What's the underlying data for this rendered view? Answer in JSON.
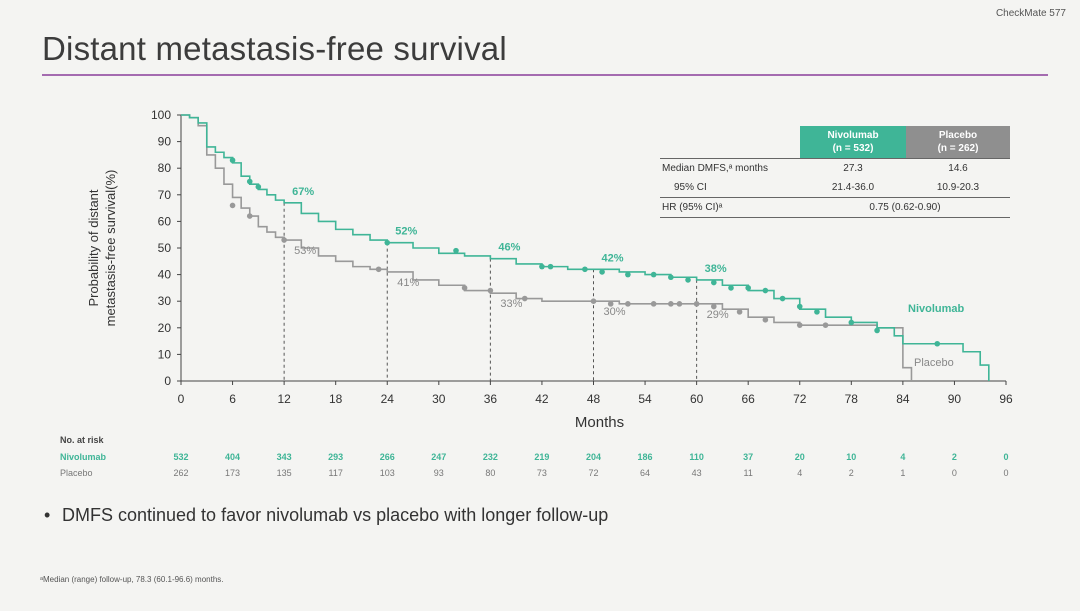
{
  "study_tag": "CheckMate 577",
  "title": "Distant metastasis-free survival",
  "bullet": "DMFS continued to favor nivolumab vs placebo with longer follow-up",
  "footnote": "ᵃMedian (range) follow-up, 78.3 (60.1-96.6) months.",
  "colors": {
    "nivolumab": "#3fb597",
    "placebo": "#999999",
    "accent": "#a46bb0"
  },
  "table": {
    "col_nivolumab": [
      "Nivolumab",
      "(n = 532)"
    ],
    "col_placebo": [
      "Placebo",
      "(n = 262)"
    ],
    "rows": [
      {
        "label": "Median DMFS,ᵃ months",
        "nivolumab": "27.3",
        "placebo": "14.6"
      },
      {
        "label": "95% CI",
        "nivolumab": "21.4-36.0",
        "placebo": "10.9-20.3"
      }
    ],
    "hr_label": "HR (95% CI)ᵃ",
    "hr_value": "0.75 (0.62-0.90)"
  },
  "chart_data": {
    "type": "line",
    "ylabel": [
      "Probability of distant",
      "metastasis-free survival(%)"
    ],
    "xlabel": "Months",
    "xlim": [
      0,
      96
    ],
    "ylim": [
      0,
      100
    ],
    "x_ticks": [
      0,
      6,
      12,
      18,
      24,
      30,
      36,
      42,
      48,
      54,
      60,
      66,
      72,
      78,
      84,
      90,
      96
    ],
    "y_ticks": [
      0,
      10,
      20,
      30,
      40,
      50,
      60,
      70,
      80,
      90,
      100
    ],
    "series": [
      {
        "name": "Nivolumab",
        "points": [
          [
            0,
            100
          ],
          [
            1,
            99
          ],
          [
            2,
            97
          ],
          [
            3,
            88
          ],
          [
            4,
            86
          ],
          [
            5,
            84
          ],
          [
            6,
            82
          ],
          [
            7,
            77
          ],
          [
            8,
            74
          ],
          [
            9,
            72
          ],
          [
            10,
            70
          ],
          [
            11,
            68
          ],
          [
            12,
            67
          ],
          [
            14,
            63
          ],
          [
            16,
            60
          ],
          [
            18,
            57
          ],
          [
            20,
            55
          ],
          [
            22,
            53
          ],
          [
            24,
            52
          ],
          [
            27,
            50
          ],
          [
            30,
            48
          ],
          [
            33,
            47
          ],
          [
            36,
            46
          ],
          [
            39,
            44
          ],
          [
            42,
            43
          ],
          [
            45,
            42
          ],
          [
            48,
            42
          ],
          [
            51,
            41
          ],
          [
            54,
            40
          ],
          [
            57,
            39
          ],
          [
            60,
            38
          ],
          [
            63,
            36
          ],
          [
            66,
            34
          ],
          [
            69,
            31
          ],
          [
            72,
            27
          ],
          [
            75,
            24
          ],
          [
            78,
            22
          ],
          [
            81,
            20
          ],
          [
            83,
            17
          ],
          [
            84,
            14
          ],
          [
            90,
            14
          ],
          [
            91,
            11
          ],
          [
            93,
            6
          ],
          [
            94,
            0
          ]
        ],
        "censors": [
          [
            6,
            83
          ],
          [
            8,
            75
          ],
          [
            9,
            73
          ],
          [
            24,
            52
          ],
          [
            32,
            49
          ],
          [
            42,
            43
          ],
          [
            43,
            43
          ],
          [
            47,
            42
          ],
          [
            49,
            41
          ],
          [
            52,
            40
          ],
          [
            55,
            40
          ],
          [
            57,
            39
          ],
          [
            59,
            38
          ],
          [
            62,
            37
          ],
          [
            64,
            35
          ],
          [
            66,
            35
          ],
          [
            68,
            34
          ],
          [
            70,
            31
          ],
          [
            72,
            28
          ],
          [
            74,
            26
          ],
          [
            78,
            22
          ],
          [
            81,
            19
          ],
          [
            88,
            14
          ]
        ],
        "milestones": [
          {
            "x": 12,
            "y": 67,
            "label": "67%"
          },
          {
            "x": 24,
            "y": 52,
            "label": "52%"
          },
          {
            "x": 36,
            "y": 46,
            "label": "46%"
          },
          {
            "x": 48,
            "y": 42,
            "label": "42%"
          },
          {
            "x": 60,
            "y": 38,
            "label": "38%"
          }
        ],
        "at_risk": [
          532,
          404,
          343,
          293,
          266,
          247,
          232,
          219,
          204,
          186,
          110,
          37,
          20,
          10,
          4,
          2,
          0
        ]
      },
      {
        "name": "Placebo",
        "points": [
          [
            0,
            100
          ],
          [
            1,
            99
          ],
          [
            2,
            96
          ],
          [
            3,
            85
          ],
          [
            4,
            80
          ],
          [
            5,
            74
          ],
          [
            6,
            69
          ],
          [
            7,
            65
          ],
          [
            8,
            62
          ],
          [
            9,
            58
          ],
          [
            10,
            56
          ],
          [
            11,
            54
          ],
          [
            12,
            53
          ],
          [
            14,
            50
          ],
          [
            16,
            47
          ],
          [
            18,
            45
          ],
          [
            20,
            43
          ],
          [
            22,
            42
          ],
          [
            24,
            41
          ],
          [
            27,
            38
          ],
          [
            30,
            36
          ],
          [
            33,
            34
          ],
          [
            36,
            33
          ],
          [
            39,
            31
          ],
          [
            42,
            30
          ],
          [
            45,
            30
          ],
          [
            48,
            30
          ],
          [
            51,
            29
          ],
          [
            54,
            29
          ],
          [
            57,
            29
          ],
          [
            60,
            29
          ],
          [
            63,
            27
          ],
          [
            66,
            24
          ],
          [
            69,
            22
          ],
          [
            72,
            21
          ],
          [
            75,
            21
          ],
          [
            78,
            21
          ],
          [
            80,
            21
          ],
          [
            81,
            20
          ],
          [
            84,
            5
          ],
          [
            85,
            0
          ]
        ],
        "censors": [
          [
            6,
            66
          ],
          [
            8,
            62
          ],
          [
            12,
            53
          ],
          [
            23,
            42
          ],
          [
            33,
            35
          ],
          [
            36,
            34
          ],
          [
            40,
            31
          ],
          [
            48,
            30
          ],
          [
            50,
            29
          ],
          [
            52,
            29
          ],
          [
            55,
            29
          ],
          [
            57,
            29
          ],
          [
            58,
            29
          ],
          [
            60,
            29
          ],
          [
            62,
            28
          ],
          [
            65,
            26
          ],
          [
            68,
            23
          ],
          [
            72,
            21
          ],
          [
            75,
            21
          ]
        ],
        "milestones": [
          {
            "x": 12,
            "y": 53,
            "label": "53%"
          },
          {
            "x": 24,
            "y": 41,
            "label": "41%"
          },
          {
            "x": 36,
            "y": 33,
            "label": "33%"
          },
          {
            "x": 48,
            "y": 30,
            "label": "30%"
          },
          {
            "x": 60,
            "y": 29,
            "label": "29%"
          }
        ],
        "at_risk": [
          262,
          173,
          135,
          117,
          103,
          93,
          80,
          73,
          72,
          64,
          43,
          11,
          4,
          2,
          1,
          0,
          0
        ]
      }
    ],
    "at_risk_title": "No. at risk",
    "series_labels_on_plot": [
      "Nivolumab",
      "Placebo"
    ],
    "grid": false
  }
}
